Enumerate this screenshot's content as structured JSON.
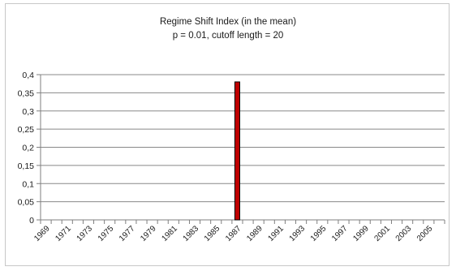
{
  "chart_data": {
    "type": "bar",
    "title": "Regime Shift Index (in the mean)",
    "subtitle": "p = 0.01, cutoff length = 20",
    "xlabel": "",
    "ylabel": "",
    "ylim": [
      0,
      0.4
    ],
    "yticks": [
      "0",
      "0,05",
      "0,1",
      "0,15",
      "0,2",
      "0,25",
      "0,3",
      "0,35",
      "0,4"
    ],
    "grid": true,
    "legend": "none",
    "x_start": 1969,
    "x_end": 2006,
    "x_tick_labels": [
      "1969",
      "1971",
      "1973",
      "1975",
      "1977",
      "1979",
      "1981",
      "1983",
      "1985",
      "1987",
      "1989",
      "1991",
      "1993",
      "1995",
      "1997",
      "1999",
      "2001",
      "2003",
      "2005"
    ],
    "bars": [
      {
        "year": 1987,
        "value": 0.38
      }
    ],
    "colors": {
      "bar_fill": "#c00000",
      "bar_border": "#000000",
      "gridline": "#888888",
      "axis": "#7f7f7f"
    }
  }
}
